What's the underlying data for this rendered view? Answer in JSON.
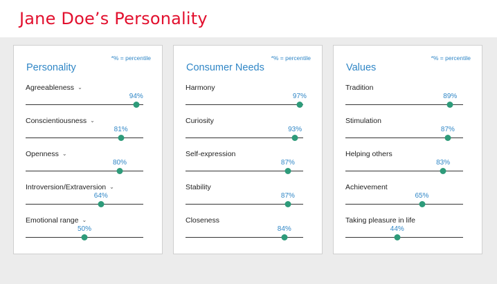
{
  "page_title": "Jane Doe’s Personality",
  "colors": {
    "title": "#e2102e",
    "accent": "#2f86c6",
    "marker": "#2e9b7a"
  },
  "cards": [
    {
      "title": "Personality",
      "note": "*% = percentile",
      "items": [
        {
          "label": "Agreeableness",
          "pct": "94%",
          "value": 94,
          "expandable": true
        },
        {
          "label": "Conscientiousness",
          "pct": "81%",
          "value": 81,
          "expandable": true
        },
        {
          "label": "Openness",
          "pct": "80%",
          "value": 80,
          "expandable": true
        },
        {
          "label": "Introversion/Extraversion",
          "pct": "64%",
          "value": 64,
          "expandable": true
        },
        {
          "label": "Emotional range",
          "pct": "50%",
          "value": 50,
          "expandable": true
        }
      ]
    },
    {
      "title": "Consumer Needs",
      "note": "*% = percentile",
      "items": [
        {
          "label": "Harmony",
          "pct": "97%",
          "value": 97,
          "expandable": false
        },
        {
          "label": "Curiosity",
          "pct": "93%",
          "value": 93,
          "expandable": false
        },
        {
          "label": "Self-expression",
          "pct": "87%",
          "value": 87,
          "expandable": false
        },
        {
          "label": "Stability",
          "pct": "87%",
          "value": 87,
          "expandable": false
        },
        {
          "label": "Closeness",
          "pct": "84%",
          "value": 84,
          "expandable": false
        }
      ]
    },
    {
      "title": "Values",
      "note": "*% = percentile",
      "items": [
        {
          "label": "Tradition",
          "pct": "89%",
          "value": 89,
          "expandable": false
        },
        {
          "label": "Stimulation",
          "pct": "87%",
          "value": 87,
          "expandable": false
        },
        {
          "label": "Helping others",
          "pct": "83%",
          "value": 83,
          "expandable": false
        },
        {
          "label": "Achievement",
          "pct": "65%",
          "value": 65,
          "expandable": false
        },
        {
          "label": "Taking pleasure in life",
          "pct": "44%",
          "value": 44,
          "expandable": false
        }
      ]
    }
  ]
}
